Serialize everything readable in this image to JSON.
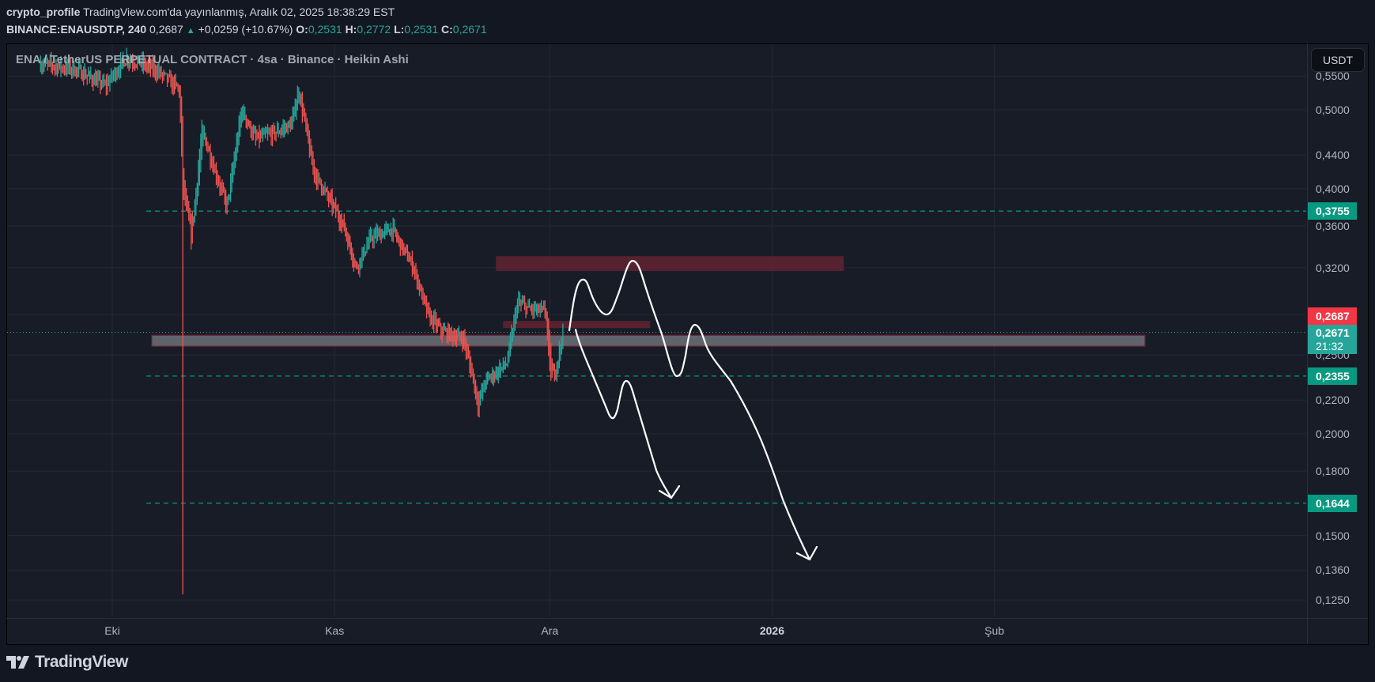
{
  "header": {
    "author": "crypto_profile",
    "published": "TradingView.com'da yayınlanmış, Aralık 02, 2025 18:38:29 EST",
    "symbol": "BINANCE:ENAUSDT.P, 240",
    "last": "0,2687",
    "change": "+0,0259 (+10.67%)",
    "o_label": "O:",
    "o": "0,2531",
    "h_label": "H:",
    "h": "0,2772",
    "l_label": "L:",
    "l": "0,2531",
    "c_label": "C:",
    "c": "0,2671"
  },
  "legend": "ENA / TetherUS PERPETUAL CONTRACT · 4sa · Binance · Heikin Ashi",
  "currency_button": "USDT",
  "price_axis": {
    "ticks": [
      {
        "value": 0.55,
        "label": "0,5500"
      },
      {
        "value": 0.5,
        "label": "0,5000"
      },
      {
        "value": 0.44,
        "label": "0,4400"
      },
      {
        "value": 0.4,
        "label": "0,4000"
      },
      {
        "value": 0.36,
        "label": "0,3600"
      },
      {
        "value": 0.32,
        "label": "0,3200"
      },
      {
        "value": 0.25,
        "label": "0,2500"
      },
      {
        "value": 0.22,
        "label": "0,2200"
      },
      {
        "value": 0.2,
        "label": "0,2000"
      },
      {
        "value": 0.18,
        "label": "0,1800"
      },
      {
        "value": 0.15,
        "label": "0,1500"
      },
      {
        "value": 0.136,
        "label": "0,1360"
      },
      {
        "value": 0.125,
        "label": "0,1250"
      }
    ],
    "scale": "log",
    "levels": [
      {
        "value": 0.3755,
        "label": "0,3755"
      },
      {
        "value": 0.2355,
        "label": "0,2355"
      },
      {
        "value": 0.1644,
        "label": "0,1644"
      }
    ],
    "last_price": {
      "value": 0.2687,
      "label": "0,2687"
    },
    "close_price": {
      "value": 0.2671,
      "label": "0,2671",
      "countdown": "21:32"
    }
  },
  "time_axis": {
    "ticks": [
      {
        "date": "2025-10-01",
        "label": "Eki",
        "bold": false
      },
      {
        "date": "2025-11-01",
        "label": "Kas",
        "bold": false
      },
      {
        "date": "2025-12-01",
        "label": "Ara",
        "bold": false
      },
      {
        "date": "2026-01-01",
        "label": "2026",
        "bold": true
      },
      {
        "date": "2026-02-01",
        "label": "Şub",
        "bold": false
      }
    ]
  },
  "colors": {
    "up": "#26a69a",
    "down": "#ef5350",
    "level": "#089981",
    "zone_red": "#5a232f",
    "zone_gray": "#60636b",
    "drawing": "#ffffff"
  },
  "chart_data": {
    "type": "candlestick-heikin-ashi",
    "interval": "4h",
    "price_path": [
      [
        "2025-09-21",
        0.57
      ],
      [
        "2025-09-26",
        0.56
      ],
      [
        "2025-09-30",
        0.535
      ],
      [
        "2025-10-03",
        0.58
      ],
      [
        "2025-10-07",
        0.56
      ],
      [
        "2025-10-10T08:00",
        0.53
      ],
      [
        "2025-10-10T20:00",
        0.4
      ],
      [
        "2025-10-12",
        0.35
      ],
      [
        "2025-10-13T12:00",
        0.47
      ],
      [
        "2025-10-15",
        0.43
      ],
      [
        "2025-10-17",
        0.38
      ],
      [
        "2025-10-19",
        0.5
      ],
      [
        "2025-10-21",
        0.46
      ],
      [
        "2025-10-24",
        0.47
      ],
      [
        "2025-10-26",
        0.48
      ],
      [
        "2025-10-27",
        0.53
      ],
      [
        "2025-10-29",
        0.42
      ],
      [
        "2025-11-02",
        0.365
      ],
      [
        "2025-11-04",
        0.32
      ],
      [
        "2025-11-06",
        0.348
      ],
      [
        "2025-11-09",
        0.357
      ],
      [
        "2025-11-12",
        0.32
      ],
      [
        "2025-11-14",
        0.28
      ],
      [
        "2025-11-16",
        0.267
      ],
      [
        "2025-11-19",
        0.262
      ],
      [
        "2025-11-21",
        0.218
      ],
      [
        "2025-11-22",
        0.232
      ],
      [
        "2025-11-25",
        0.244
      ],
      [
        "2025-11-26T12:00",
        0.29
      ],
      [
        "2025-11-28",
        0.285
      ],
      [
        "2025-11-30T12:00",
        0.282
      ],
      [
        "2025-12-01",
        0.236
      ],
      [
        "2025-12-01T20:00",
        0.24
      ],
      [
        "2025-12-02T20:00",
        0.2671
      ]
    ],
    "extreme_low": {
      "date": "2025-10-10T20:00",
      "price": 0.127
    },
    "zones": [
      {
        "type": "rectangle",
        "color": "red",
        "from": "2025-11-23T12:00",
        "to": "2026-01-11",
        "top": 0.3305,
        "bottom": 0.317
      },
      {
        "type": "rectangle",
        "color": "red",
        "from": "2025-11-24T12:00",
        "to": "2025-12-15",
        "top": 0.2752,
        "bottom": 0.2697
      },
      {
        "type": "rectangle",
        "color": "gray",
        "from": "2025-10-06T12:00",
        "to": "2026-02-22",
        "top": 0.2643,
        "bottom": 0.2562
      }
    ]
  },
  "branding": {
    "logo": "TradingView"
  }
}
